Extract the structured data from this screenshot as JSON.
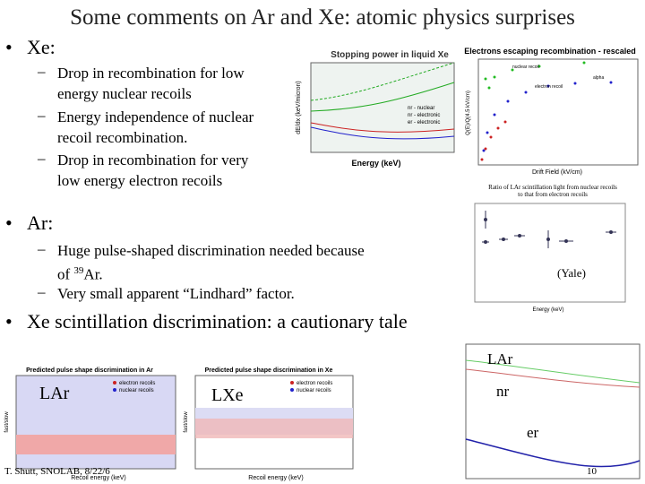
{
  "slide": {
    "title": "Some comments on Ar and Xe: atomic physics surprises",
    "bullets": [
      {
        "text": "Xe:",
        "subs": [
          "Drop in recombination for low energy nuclear recoils",
          "Energy independence of nuclear recoil recombination.",
          "Drop in recombination for very low energy electron recoils"
        ]
      },
      {
        "text": "Ar:",
        "subs": [
          [
            "Huge pulse-shaped discrimination needed because of ",
            "39",
            "Ar."
          ],
          "Very small apparent “Lindhard” factor."
        ]
      },
      {
        "text": "Xe scintillation discrimination: a cautionary tale"
      }
    ],
    "figures": {
      "stopping": {
        "title": "Stopping power in liquid Xe",
        "ylabel": "dE/dx (keV/micron)",
        "xlabel": "Energy (keV)",
        "legend": [
          "nr - nuclear",
          "nr - electronic",
          "er - electronic"
        ]
      },
      "recombination": {
        "title": "Electrons escaping recombination - rescaled",
        "ylabel": "Q(E)/Q(4.5 kV/cm)",
        "xlabel": "Drift Field (kV/cm)",
        "labels": [
          "nuclear recoil",
          "electron recoil",
          "alpha"
        ]
      },
      "ratio": {
        "title": "Ratio of LAr scintillation light from nuclear recoils to that from electron recoils",
        "xlabel": "Energy (keV)",
        "note": "(Yale)"
      },
      "lar": {
        "label": "LAr",
        "nr": "nr",
        "er": "er"
      },
      "psd_ar": {
        "title": "Predicted pulse shape discrimination in Ar",
        "label": "LAr",
        "legend": [
          "electron recoils",
          "nuclear recoils"
        ],
        "xlabel": "Recoil energy (keV)",
        "ylabel": "fast/slow"
      },
      "psd_xe": {
        "title": "Predicted pulse shape discrimination in Xe",
        "label": "LXe",
        "legend": [
          "electron recoils",
          "nuclear recoils"
        ],
        "xlabel": "Recoil energy (keV)",
        "ylabel": "fast/slow"
      }
    },
    "footer": "T. Shutt, SNOLAB, 8/22/6",
    "page": "10"
  }
}
